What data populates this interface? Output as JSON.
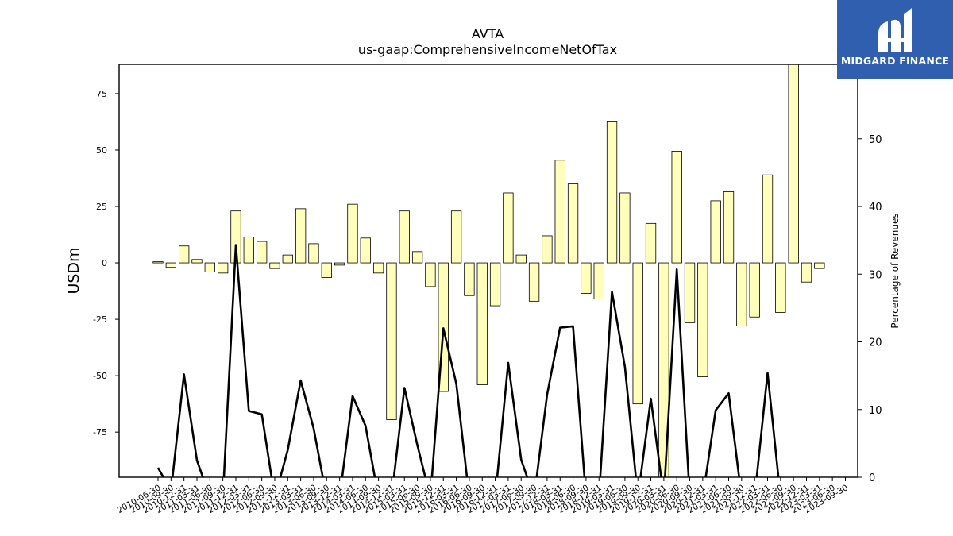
{
  "logo": {
    "text": "MIDGARD FINANCE",
    "background": "#2f5fae"
  },
  "chart_data": {
    "type": "bar",
    "title": "AVTA",
    "subtitle": "us-gaap:ComprehensiveIncomeNetOfTax",
    "ylabel": "USDm",
    "y2label": "Percentage of Revenues",
    "ylim": [
      -95,
      88
    ],
    "y2lim": [
      0,
      61
    ],
    "yticks": [
      -75,
      -50,
      -25,
      0,
      25,
      50,
      75
    ],
    "y2ticks": [
      0,
      10,
      20,
      30,
      40,
      50
    ],
    "bar_color": "#ffffbb",
    "line_color": "#000000",
    "categories": [
      "2010-06-30",
      "2010-09-30",
      "2010-12-31",
      "2011-03-31",
      "2011-06-30",
      "2011-09-30",
      "2011-12-31",
      "2012-03-31",
      "2012-06-30",
      "2012-09-30",
      "2012-12-31",
      "2013-03-31",
      "2013-06-30",
      "2013-09-30",
      "2013-12-31",
      "2014-03-31",
      "2014-06-30",
      "2014-09-30",
      "2014-12-31",
      "2015-03-31",
      "2015-06-30",
      "2015-09-30",
      "2015-12-31",
      "2016-03-31",
      "2016-06-30",
      "2016-09-30",
      "2016-12-31",
      "2017-03-31",
      "2017-06-30",
      "2017-09-30",
      "2017-12-31",
      "2018-03-31",
      "2018-06-30",
      "2018-09-30",
      "2018-12-31",
      "2019-03-31",
      "2019-06-30",
      "2019-09-30",
      "2019-12-31",
      "2020-03-31",
      "2020-06-30",
      "2020-09-30",
      "2020-12-31",
      "2021-03-31",
      "2021-06-30",
      "2021-09-30",
      "2021-12-31",
      "2022-03-31",
      "2022-06-30",
      "2022-09-30",
      "2022-12-31",
      "2023-03-31",
      "2023-06-30",
      "2023-09-30"
    ],
    "xtick_labels": [
      "2010-06-30",
      "2010-09-30",
      "2010-12-31",
      "2011-03-31",
      "2011-06-30",
      "2011-09-30",
      "2011-12-31",
      "2012-03-31",
      "2012-06-30",
      "2012-09-30",
      "2012-12-31",
      "2013-03-31",
      "2013-06-30",
      "2013-09-30",
      "2013-12-31",
      "2014-03-31",
      "2014-06-30",
      "2014-09-30",
      "2014-12-31",
      "2015-03-31",
      "2015-06-30",
      "2015-09-30",
      "2015-12-31",
      "2016-03-31",
      "2016-06-30",
      "2016-09-30",
      "2016-12-31",
      "2017-03-31",
      "2017-06-30",
      "2017-09-30",
      "2017-12-31",
      "2018-03-31",
      "2018-06-30",
      "2018-09-30",
      "2018-12-31",
      "2019-03-31",
      "2019-06-30",
      "2019-09-30",
      "2019-12-31",
      "2020-03-31",
      "2020-06-30",
      "2020-09-30",
      "2020-12-31",
      "2021-03-31",
      "2021-06-30",
      "2021-09-30",
      "2021-12-31",
      "2022-03-31",
      "2022-06-30",
      "2022-09-30",
      "2022-12-31",
      "2023-03-31",
      "2023-06-30",
      "2023-09-30"
    ],
    "series": [
      {
        "values": [
          0.5,
          -2,
          7.5,
          1.5,
          -4,
          -4.5,
          23,
          11.5,
          9.5,
          -2.5,
          3.5,
          24,
          8.5,
          -6.5,
          -1,
          26,
          11,
          -4.5,
          -69.5,
          23,
          5,
          -10.5,
          -57,
          23,
          -14.5,
          -54,
          -19,
          31,
          3.5,
          -17,
          12,
          45.5,
          35,
          -13.5,
          -16,
          62.5,
          31,
          -62.5,
          17.5,
          -95,
          49.5,
          -26.5,
          -50.5,
          27.5,
          31.5,
          -28,
          -24,
          39,
          -22,
          88,
          -8.5,
          -2.5,
          null,
          null
        ]
      },
      {
        "axis": "secondary",
        "type": "line",
        "values": [
          1.4,
          -2,
          15.2,
          2.5,
          -3,
          -3,
          34.3,
          9.8,
          9.3,
          -3,
          4,
          14.3,
          7.2,
          -3,
          -3,
          12,
          7.6,
          -3,
          -3,
          13.2,
          4.7,
          -3,
          22,
          13.8,
          -3,
          -3,
          -3,
          16.9,
          2.6,
          -3,
          12.2,
          22.1,
          22.3,
          -3,
          -3,
          27.4,
          16.3,
          -3,
          11.6,
          -3,
          30.7,
          -3,
          -3,
          9.9,
          12.4,
          -3,
          -3,
          15.4,
          -3,
          null,
          null,
          null,
          null,
          null
        ]
      }
    ]
  }
}
